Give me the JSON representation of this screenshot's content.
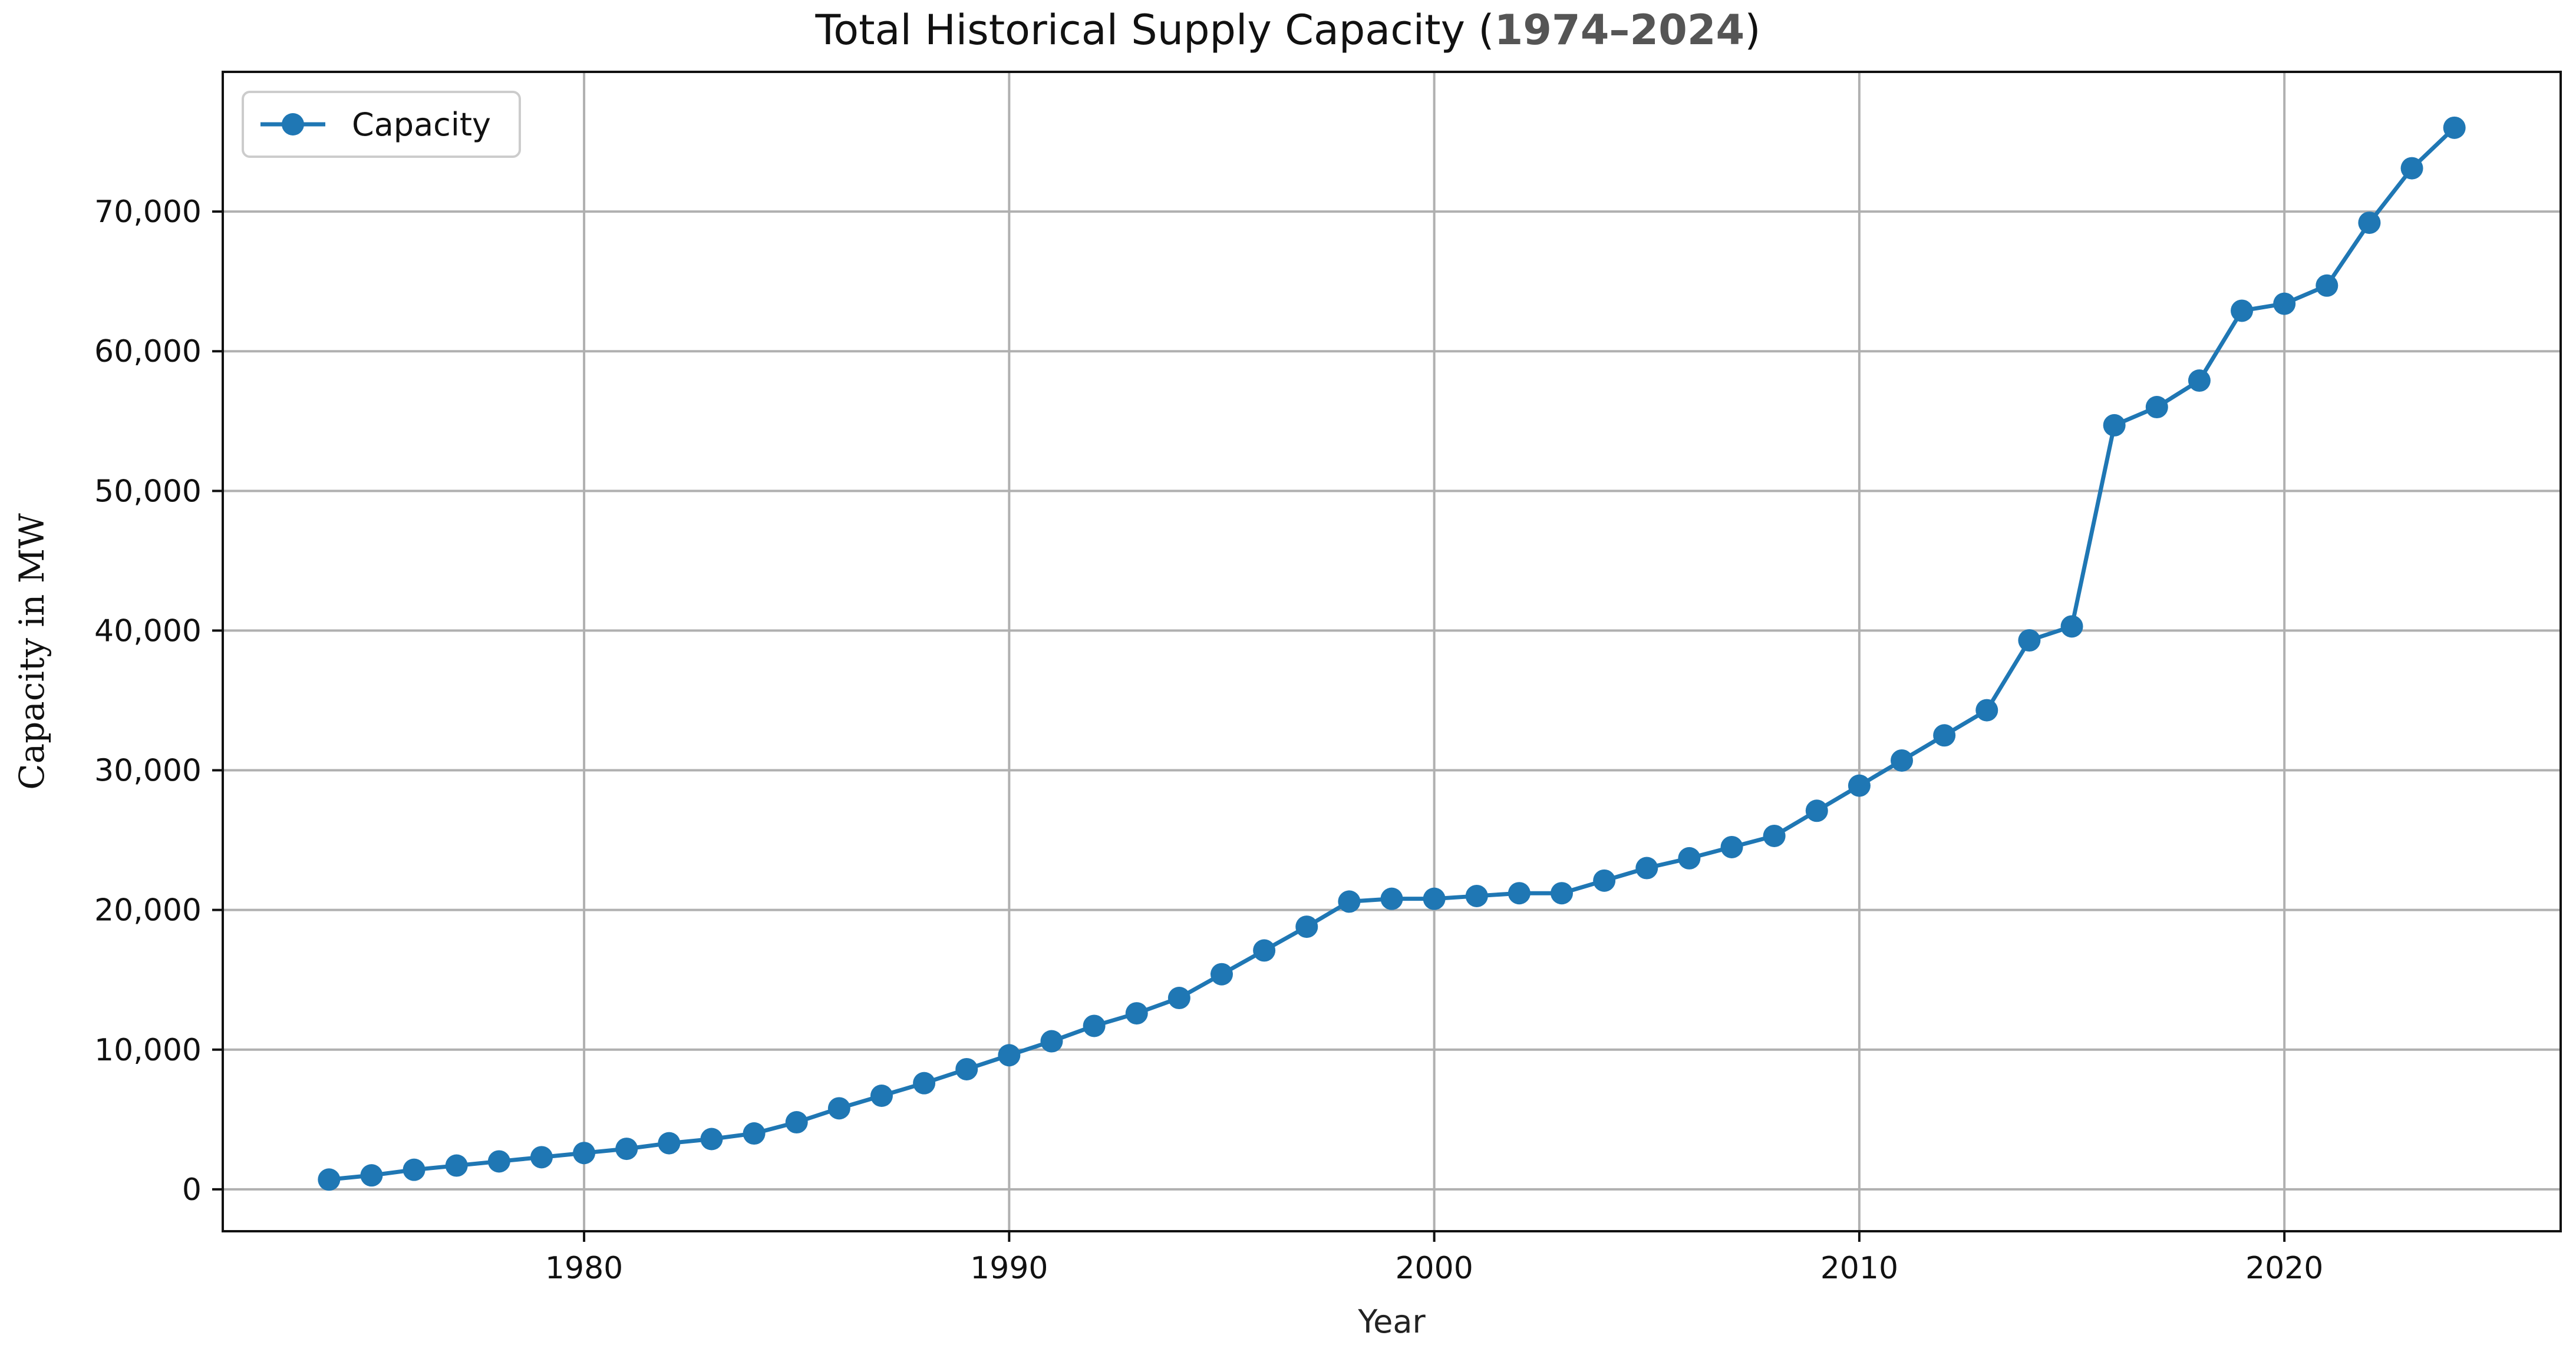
{
  "chart_data": {
    "type": "line",
    "title": "Total Historical Supply Capacity (",
    "title_range": "1974–2024",
    "title_end": ")",
    "xlabel": "Year",
    "ylabel": "Capacity in MW",
    "xlim": [
      1971.5,
      2026.5
    ],
    "ylim": [
      -3000,
      80000
    ],
    "xticks": [
      1980,
      1990,
      2000,
      2010,
      2020
    ],
    "yticks": [
      0,
      10000,
      20000,
      30000,
      40000,
      50000,
      60000,
      70000
    ],
    "ytick_labels": [
      "0",
      "10,000",
      "20,000",
      "30,000",
      "40,000",
      "50,000",
      "60,000",
      "70,000"
    ],
    "grid": true,
    "legend": {
      "position": "top-left",
      "entries": [
        "Capacity"
      ]
    },
    "color": "#1f77b4",
    "series": [
      {
        "name": "Capacity",
        "x": [
          1974,
          1975,
          1976,
          1977,
          1978,
          1979,
          1980,
          1981,
          1982,
          1983,
          1984,
          1985,
          1986,
          1987,
          1988,
          1989,
          1990,
          1991,
          1992,
          1993,
          1994,
          1995,
          1996,
          1997,
          1998,
          1999,
          2000,
          2001,
          2002,
          2003,
          2004,
          2005,
          2006,
          2007,
          2008,
          2009,
          2010,
          2011,
          2012,
          2013,
          2014,
          2015,
          2016,
          2017,
          2018,
          2019,
          2020,
          2021,
          2022,
          2023,
          2024
        ],
        "values": [
          700,
          1000,
          1400,
          1700,
          2000,
          2300,
          2600,
          2900,
          3300,
          3600,
          4000,
          4800,
          5800,
          6700,
          7600,
          8600,
          9600,
          10600,
          11700,
          12600,
          13700,
          15400,
          17100,
          18800,
          20600,
          20800,
          20800,
          21000,
          21200,
          21200,
          22100,
          23000,
          23700,
          24500,
          25300,
          27100,
          28900,
          30700,
          32500,
          34300,
          39300,
          40300,
          54700,
          56000,
          57900,
          62900,
          63400,
          64700,
          69200,
          73100,
          76000
        ]
      }
    ]
  }
}
